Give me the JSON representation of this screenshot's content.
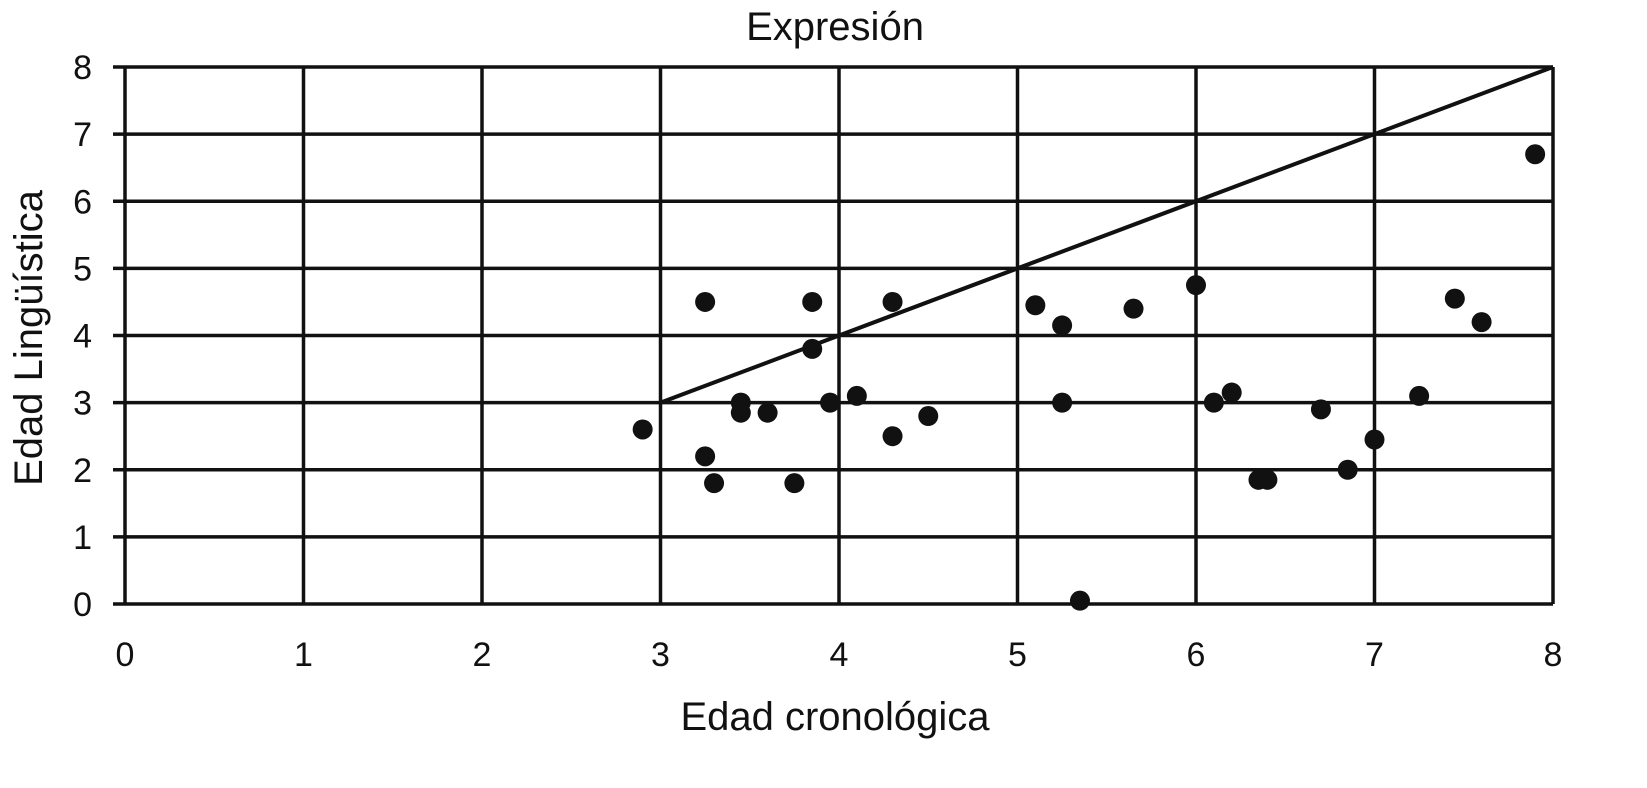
{
  "chart_data": {
    "type": "scatter",
    "title": "Expresión",
    "xlabel": "Edad cronológica",
    "ylabel": "Edad Lingüística",
    "xlim": [
      0,
      8
    ],
    "ylim": [
      0,
      8
    ],
    "xticks": [
      "0",
      "1",
      "2",
      "3",
      "4",
      "5",
      "6",
      "7",
      "8"
    ],
    "yticks": [
      "0",
      "1",
      "2",
      "3",
      "4",
      "5",
      "6",
      "7",
      "8"
    ],
    "grid": true,
    "reference_line": {
      "from": [
        3,
        3
      ],
      "to": [
        8,
        8
      ]
    },
    "points": [
      {
        "x": 2.9,
        "y": 2.6
      },
      {
        "x": 3.25,
        "y": 4.5
      },
      {
        "x": 3.25,
        "y": 2.2
      },
      {
        "x": 3.3,
        "y": 1.8
      },
      {
        "x": 3.45,
        "y": 3.0
      },
      {
        "x": 3.45,
        "y": 2.85
      },
      {
        "x": 3.6,
        "y": 2.85
      },
      {
        "x": 3.75,
        "y": 1.8
      },
      {
        "x": 3.85,
        "y": 4.5
      },
      {
        "x": 3.85,
        "y": 3.8
      },
      {
        "x": 3.95,
        "y": 3.0
      },
      {
        "x": 4.1,
        "y": 3.1
      },
      {
        "x": 4.3,
        "y": 4.5
      },
      {
        "x": 4.3,
        "y": 2.5
      },
      {
        "x": 4.5,
        "y": 2.8
      },
      {
        "x": 5.1,
        "y": 4.45
      },
      {
        "x": 5.25,
        "y": 4.15
      },
      {
        "x": 5.25,
        "y": 3.0
      },
      {
        "x": 5.35,
        "y": 0.05
      },
      {
        "x": 5.65,
        "y": 4.4
      },
      {
        "x": 6.0,
        "y": 4.75
      },
      {
        "x": 6.1,
        "y": 3.0
      },
      {
        "x": 6.2,
        "y": 3.15
      },
      {
        "x": 6.35,
        "y": 1.85
      },
      {
        "x": 6.4,
        "y": 1.85
      },
      {
        "x": 6.7,
        "y": 2.9
      },
      {
        "x": 6.85,
        "y": 2.0
      },
      {
        "x": 7.0,
        "y": 2.45
      },
      {
        "x": 7.25,
        "y": 3.1
      },
      {
        "x": 7.45,
        "y": 4.55
      },
      {
        "x": 7.6,
        "y": 4.2
      },
      {
        "x": 7.9,
        "y": 6.7
      }
    ]
  }
}
